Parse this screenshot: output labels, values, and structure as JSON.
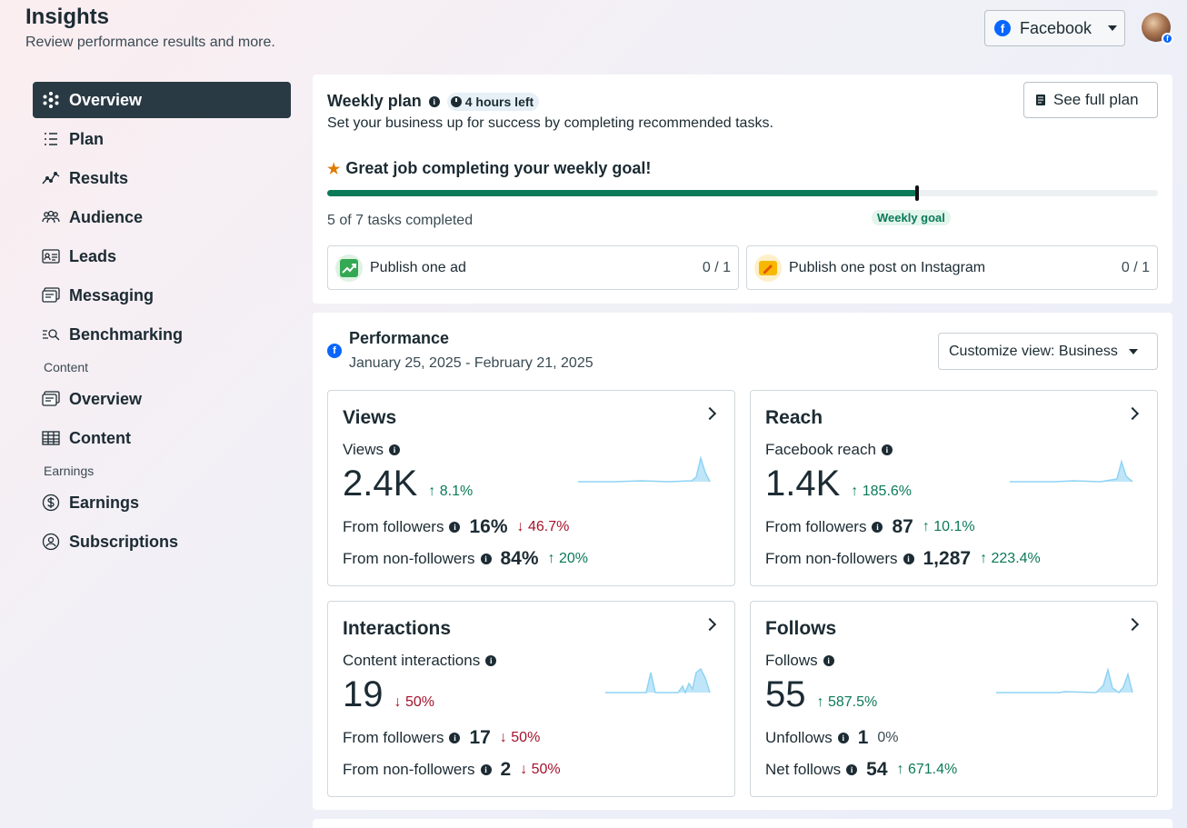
{
  "header": {
    "title": "Insights",
    "subtitle": "Review performance results and more.",
    "platform": "Facebook"
  },
  "sidebar": {
    "items": [
      {
        "label": "Overview",
        "icon": "overview-icon",
        "active": true
      },
      {
        "label": "Plan",
        "icon": "plan-icon"
      },
      {
        "label": "Results",
        "icon": "results-icon"
      },
      {
        "label": "Audience",
        "icon": "audience-icon"
      },
      {
        "label": "Leads",
        "icon": "leads-icon"
      },
      {
        "label": "Messaging",
        "icon": "messaging-icon"
      },
      {
        "label": "Benchmarking",
        "icon": "benchmarking-icon"
      }
    ],
    "content_section": "Content",
    "content_items": [
      {
        "label": "Overview",
        "icon": "content-overview-icon"
      },
      {
        "label": "Content",
        "icon": "content-table-icon"
      }
    ],
    "earnings_section": "Earnings",
    "earnings_items": [
      {
        "label": "Earnings",
        "icon": "dollar-icon"
      },
      {
        "label": "Subscriptions",
        "icon": "subscriptions-icon"
      }
    ]
  },
  "weekly_plan": {
    "title": "Weekly plan",
    "time_left": "4 hours left",
    "description": "Set your business up for success by completing recommended tasks.",
    "see_full_plan": "See full plan",
    "goal_message": "Great job completing your weekly goal!",
    "progress_fraction": 0.71,
    "tasks_completed": "5 of 7 tasks completed",
    "goal_label": "Weekly goal",
    "tasks": [
      {
        "label": "Publish one ad",
        "count": "0 / 1"
      },
      {
        "label": "Publish one post on Instagram",
        "count": "0 / 1"
      }
    ]
  },
  "performance": {
    "title": "Performance",
    "date_range": "January 25, 2025 - February 21, 2025",
    "customize_label": "Customize view: Business",
    "cards": {
      "views": {
        "title": "Views",
        "metric": "Views",
        "value": "2.4K",
        "delta": "↑ 8.1%",
        "row1_label": "From followers",
        "row1_value": "16%",
        "row1_delta": "↓ 46.7%",
        "row2_label": "From non-followers",
        "row2_value": "84%",
        "row2_delta": "↑ 20%"
      },
      "reach": {
        "title": "Reach",
        "metric": "Facebook reach",
        "value": "1.4K",
        "delta": "↑ 185.6%",
        "row1_label": "From followers",
        "row1_value": "87",
        "row1_delta": "↑ 10.1%",
        "row2_label": "From non-followers",
        "row2_value": "1,287",
        "row2_delta": "↑ 223.4%"
      },
      "interactions": {
        "title": "Interactions",
        "metric": "Content interactions",
        "value": "19",
        "delta": "↓ 50%",
        "row1_label": "From followers",
        "row1_value": "17",
        "row1_delta": "↓ 50%",
        "row2_label": "From non-followers",
        "row2_value": "2",
        "row2_delta": "↓ 50%"
      },
      "follows": {
        "title": "Follows",
        "metric": "Follows",
        "value": "55",
        "delta": "↑ 587.5%",
        "row1_label": "Unfollows",
        "row1_value": "1",
        "row1_delta": "0%",
        "row2_label": "Net follows",
        "row2_value": "54",
        "row2_delta": "↑ 671.4%"
      }
    }
  },
  "colors": {
    "accent_green": "#0b7a58",
    "negative_red": "#a4132c",
    "facebook_blue": "#0866ff",
    "sparkline": "#8fd3f4"
  }
}
